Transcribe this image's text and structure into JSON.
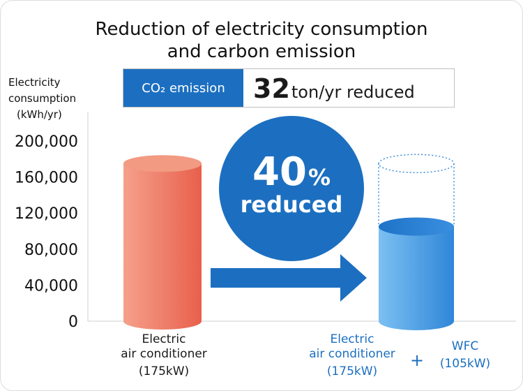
{
  "title": {
    "line1": "Reduction of electricity consumption",
    "line2": "and carbon emission"
  },
  "co2_banner": {
    "label": "CO₂ emission",
    "value": "32",
    "unit_text": "ton/yr reduced"
  },
  "badge": {
    "value": "40",
    "unit": "%",
    "text": "reduced"
  },
  "colors": {
    "accent_blue": "#1c6fc0",
    "bar_red": "#e8604c",
    "bar_blue": "#2f86d8"
  },
  "chart_data": {
    "type": "bar",
    "title": "Reduction of electricity consumption and carbon emission",
    "ylabel": [
      "Electricity",
      "consumption",
      "(kWh/yr)"
    ],
    "ylim": [
      0,
      200000
    ],
    "yticks": [
      "200,000",
      "160,000",
      "120,000",
      "80,000",
      "40,000",
      "0"
    ],
    "ytick_values": [
      200000,
      160000,
      120000,
      80000,
      40000,
      0
    ],
    "categories": [
      [
        "Electric",
        "air conditioner",
        "(175kW)"
      ],
      [
        "Electric",
        "air conditioner",
        "(175kW)"
      ]
    ],
    "extra_label": [
      "WFC",
      "(105kW)"
    ],
    "plus_sign": "+",
    "values": [
      175000,
      105000
    ],
    "ghost_value": 175000
  }
}
